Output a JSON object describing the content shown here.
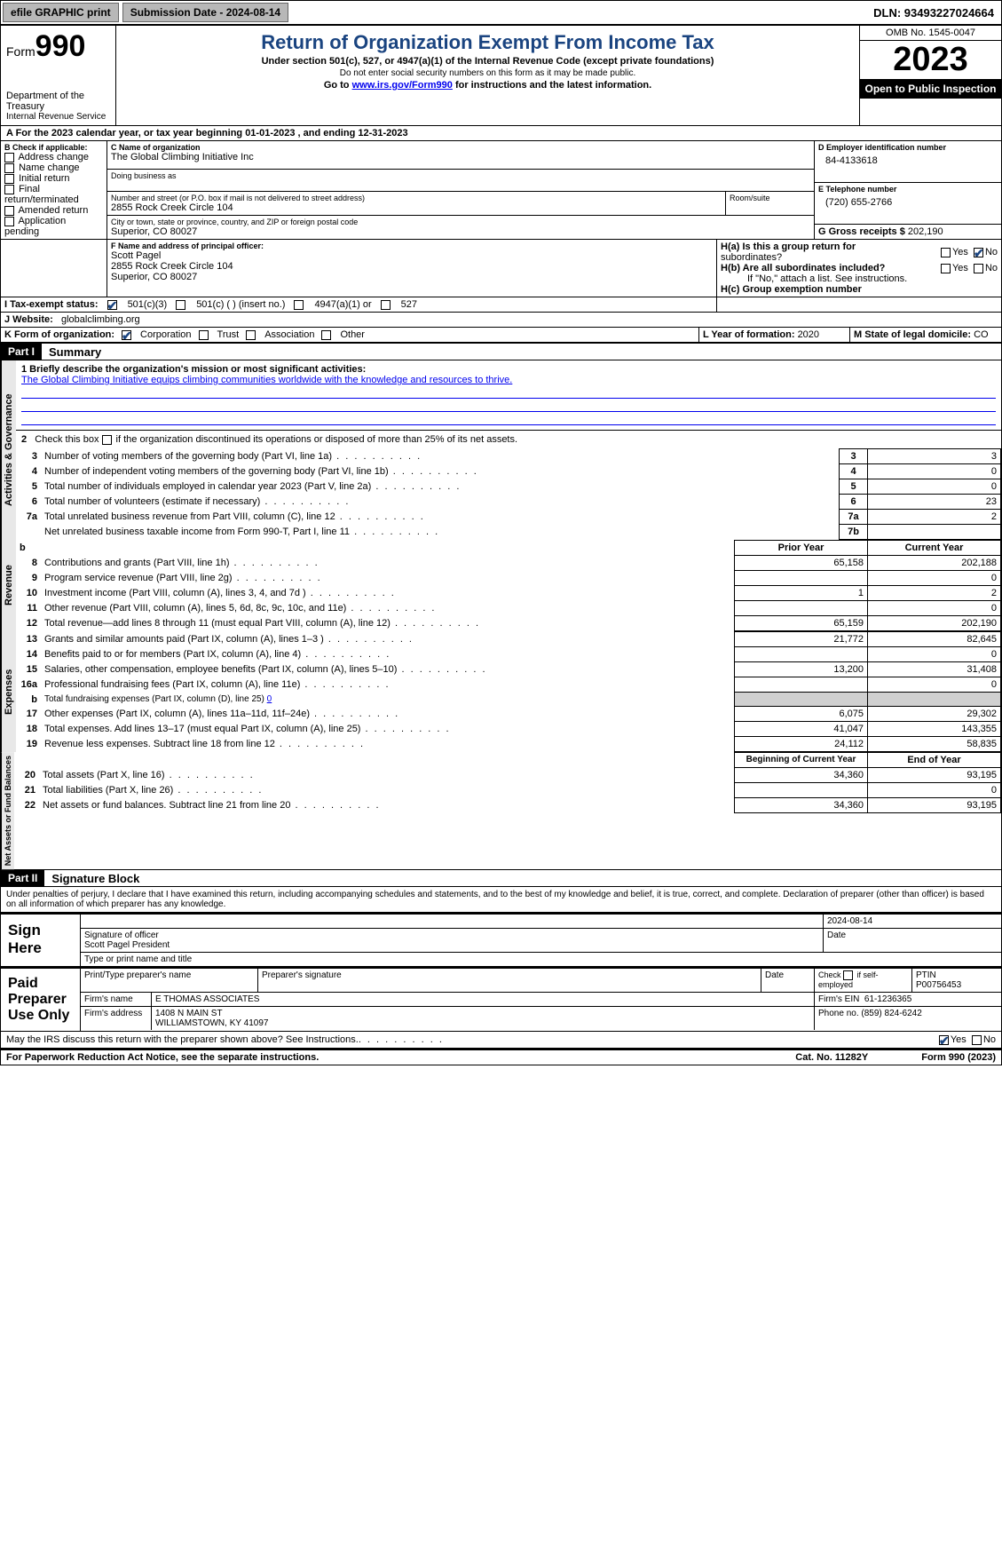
{
  "topbar": {
    "efile": "efile GRAPHIC print",
    "submission": "Submission Date - 2024-08-14",
    "dln": "DLN: 93493227024664"
  },
  "header": {
    "form_label": "Form",
    "form_num": "990",
    "dept": "Department of the Treasury",
    "irs": "Internal Revenue Service",
    "title": "Return of Organization Exempt From Income Tax",
    "sub": "Under section 501(c), 527, or 4947(a)(1) of the Internal Revenue Code (except private foundations)",
    "ssn": "Do not enter social security numbers on this form as it may be made public.",
    "goto": "Go to ",
    "goto_link": "www.irs.gov/Form990",
    "goto_after": " for instructions and the latest information.",
    "omb": "OMB No. 1545-0047",
    "year": "2023",
    "open": "Open to Public Inspection"
  },
  "section_a": "A For the 2023 calendar year, or tax year beginning 01-01-2023   , and ending 12-31-2023",
  "box_b": {
    "title": "B Check if applicable:",
    "items": [
      "Address change",
      "Name change",
      "Initial return",
      "Final return/terminated",
      "Amended return",
      "Application pending"
    ]
  },
  "box_c": {
    "name_lbl": "C Name of organization",
    "name": "The Global Climbing Initiative Inc",
    "dba_lbl": "Doing business as",
    "addr_lbl": "Number and street (or P.O. box if mail is not delivered to street address)",
    "room_lbl": "Room/suite",
    "addr": "2855 Rock Creek Circle 104",
    "city_lbl": "City or town, state or province, country, and ZIP or foreign postal code",
    "city": "Superior, CO  80027"
  },
  "box_d": {
    "lbl": "D Employer identification number",
    "val": "84-4133618"
  },
  "box_e": {
    "lbl": "E Telephone number",
    "val": "(720) 655-2766"
  },
  "box_g": {
    "lbl": "G Gross receipts $ ",
    "val": "202,190"
  },
  "box_f": {
    "lbl": "F  Name and address of principal officer:",
    "name": "Scott Pagel",
    "addr1": "2855 Rock Creek Circle 104",
    "addr2": "Superior, CO  80027"
  },
  "box_h": {
    "a": "H(a)  Is this a group return for",
    "a2": "subordinates?",
    "b": "H(b)  Are all subordinates included?",
    "note": "If \"No,\" attach a list. See instructions.",
    "c": "H(c)  Group exemption number"
  },
  "box_i": {
    "lbl": "I   Tax-exempt status:",
    "opts": [
      "501(c)(3)",
      "501(c) (  ) (insert no.)",
      "4947(a)(1) or",
      "527"
    ]
  },
  "box_j": {
    "lbl": "J   Website:",
    "val": "globalclimbing.org"
  },
  "box_k": {
    "lbl": "K Form of organization:",
    "opts": [
      "Corporation",
      "Trust",
      "Association",
      "Other"
    ]
  },
  "box_l": {
    "lbl": "L Year of formation: ",
    "val": "2020"
  },
  "box_m": {
    "lbl": "M State of legal domicile: ",
    "val": "CO"
  },
  "part1": {
    "hdr": "Part I",
    "title": "Summary",
    "mission_lbl": "1   Briefly describe the organization's mission or most significant activities:",
    "mission": "The Global Climbing Initiative equips climbing communities worldwide with the knowledge and resources to thrive.",
    "line2": "2    Check this box        if the organization discontinued its operations or disposed of more than 25% of its net assets.",
    "rows_gov": [
      {
        "n": "3",
        "lbl": "Number of voting members of the governing body (Part VI, line 1a)",
        "box": "3",
        "v": "3"
      },
      {
        "n": "4",
        "lbl": "Number of independent voting members of the governing body (Part VI, line 1b)",
        "box": "4",
        "v": "0"
      },
      {
        "n": "5",
        "lbl": "Total number of individuals employed in calendar year 2023 (Part V, line 2a)",
        "box": "5",
        "v": "0"
      },
      {
        "n": "6",
        "lbl": "Total number of volunteers (estimate if necessary)",
        "box": "6",
        "v": "23"
      },
      {
        "n": "7a",
        "lbl": "Total unrelated business revenue from Part VIII, column (C), line 12",
        "box": "7a",
        "v": "2"
      },
      {
        "n": "",
        "lbl": "Net unrelated business taxable income from Form 990-T, Part I, line 11",
        "box": "7b",
        "v": ""
      }
    ],
    "col_prior": "Prior Year",
    "col_curr": "Current Year",
    "rows_rev": [
      {
        "n": "8",
        "lbl": "Contributions and grants (Part VIII, line 1h)",
        "p": "65,158",
        "c": "202,188"
      },
      {
        "n": "9",
        "lbl": "Program service revenue (Part VIII, line 2g)",
        "p": "",
        "c": "0"
      },
      {
        "n": "10",
        "lbl": "Investment income (Part VIII, column (A), lines 3, 4, and 7d )",
        "p": "1",
        "c": "2"
      },
      {
        "n": "11",
        "lbl": "Other revenue (Part VIII, column (A), lines 5, 6d, 8c, 9c, 10c, and 11e)",
        "p": "",
        "c": "0"
      },
      {
        "n": "12",
        "lbl": "Total revenue—add lines 8 through 11 (must equal Part VIII, column (A), line 12)",
        "p": "65,159",
        "c": "202,190"
      }
    ],
    "rows_exp": [
      {
        "n": "13",
        "lbl": "Grants and similar amounts paid (Part IX, column (A), lines 1–3 )",
        "p": "21,772",
        "c": "82,645"
      },
      {
        "n": "14",
        "lbl": "Benefits paid to or for members (Part IX, column (A), line 4)",
        "p": "",
        "c": "0"
      },
      {
        "n": "15",
        "lbl": "Salaries, other compensation, employee benefits (Part IX, column (A), lines 5–10)",
        "p": "13,200",
        "c": "31,408"
      },
      {
        "n": "16a",
        "lbl": "Professional fundraising fees (Part IX, column (A), line 11e)",
        "p": "",
        "c": "0"
      },
      {
        "n": "b",
        "lbl": "Total fundraising expenses (Part IX, column (D), line 25) ",
        "sub": "0",
        "shade": true
      },
      {
        "n": "17",
        "lbl": "Other expenses (Part IX, column (A), lines 11a–11d, 11f–24e)",
        "p": "6,075",
        "c": "29,302"
      },
      {
        "n": "18",
        "lbl": "Total expenses. Add lines 13–17 (must equal Part IX, column (A), line 25)",
        "p": "41,047",
        "c": "143,355"
      },
      {
        "n": "19",
        "lbl": "Revenue less expenses. Subtract line 18 from line 12",
        "p": "24,112",
        "c": "58,835"
      }
    ],
    "col_begin": "Beginning of Current Year",
    "col_end": "End of Year",
    "rows_net": [
      {
        "n": "20",
        "lbl": "Total assets (Part X, line 16)",
        "p": "34,360",
        "c": "93,195"
      },
      {
        "n": "21",
        "lbl": "Total liabilities (Part X, line 26)",
        "p": "",
        "c": "0"
      },
      {
        "n": "22",
        "lbl": "Net assets or fund balances. Subtract line 21 from line 20",
        "p": "34,360",
        "c": "93,195"
      }
    ],
    "vlabels": {
      "gov": "Activities & Governance",
      "rev": "Revenue",
      "exp": "Expenses",
      "net": "Net Assets or Fund Balances"
    }
  },
  "part2": {
    "hdr": "Part II",
    "title": "Signature Block",
    "decl": "Under penalties of perjury, I declare that I have examined this return, including accompanying schedules and statements, and to the best of my knowledge and belief, it is true, correct, and complete. Declaration of preparer (other than officer) is based on all information of which preparer has any knowledge."
  },
  "sign": {
    "here": "Sign Here",
    "sig_lbl": "Signature of officer",
    "name": "Scott Pagel President",
    "type_lbl": "Type or print name and title",
    "date_lbl": "Date",
    "date": "2024-08-14"
  },
  "paid": {
    "title": "Paid Preparer Use Only",
    "print_lbl": "Print/Type preparer's name",
    "sig_lbl": "Preparer's signature",
    "date_lbl": "Date",
    "check_lbl": "Check         if self-employed",
    "ptin_lbl": "PTIN",
    "ptin": "P00756453",
    "firm_lbl": "Firm's name",
    "firm": "E THOMAS ASSOCIATES",
    "ein_lbl": "Firm's EIN",
    "ein": "61-1236365",
    "addr_lbl": "Firm's address",
    "addr1": "1408 N MAIN ST",
    "addr2": "WILLIAMSTOWN, KY  41097",
    "phone_lbl": "Phone no.",
    "phone": "(859) 824-6242"
  },
  "may_irs": "May the IRS discuss this return with the preparer shown above? See Instructions.",
  "footer": {
    "left": "For Paperwork Reduction Act Notice, see the separate instructions.",
    "mid": "Cat. No. 11282Y",
    "right": "Form 990 (2023)"
  },
  "yes": "Yes",
  "no": "No"
}
